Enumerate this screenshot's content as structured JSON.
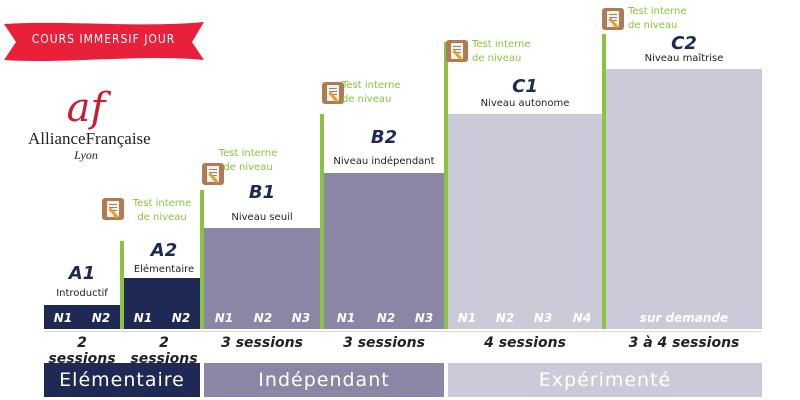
{
  "banner": "COURS IMMERSIF JOUR",
  "logo": {
    "mark": "af",
    "name": "AllianceFrançaise",
    "city": "Lyon"
  },
  "test_label_1": "Test interne",
  "test_label_2": "de niveau",
  "levels": [
    {
      "code": "A1",
      "name": "Introductif",
      "cells": [
        "N1",
        "N2"
      ],
      "sessions": "2 sessions"
    },
    {
      "code": "A2",
      "name": "Elémentaire",
      "cells": [
        "N1",
        "N2"
      ],
      "sessions": "2 sessions"
    },
    {
      "code": "B1",
      "name": "Niveau seuil",
      "cells": [
        "N1",
        "N2",
        "N3"
      ],
      "sessions": "3 sessions"
    },
    {
      "code": "B2",
      "name": "Niveau indépendant",
      "cells": [
        "N1",
        "N2",
        "N3"
      ],
      "sessions": "3 sessions"
    },
    {
      "code": "C1",
      "name": "Niveau autonome",
      "cells": [
        "N1",
        "N2",
        "N3",
        "N4"
      ],
      "sessions": "4 sessions"
    },
    {
      "code": "C2",
      "name": "Niveau maîtrise",
      "cells": [
        "sur demande"
      ],
      "sessions": "3 à 4 sessions"
    }
  ],
  "categories": [
    "Elémentaire",
    "Indépendant",
    "Expérimenté"
  ],
  "colors": {
    "dark": "#1e2a55",
    "mid": "#8b86a6",
    "light": "#cccad9",
    "green": "#8cc240",
    "red": "#e8203a"
  }
}
